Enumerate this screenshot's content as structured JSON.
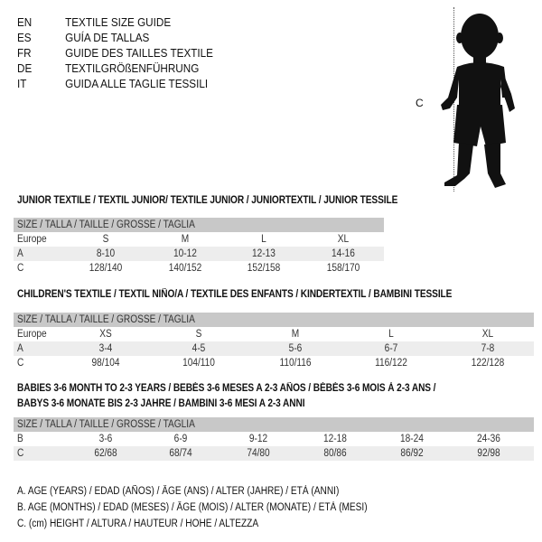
{
  "languages": [
    {
      "code": "EN",
      "title": "TEXTILE SIZE GUIDE"
    },
    {
      "code": "ES",
      "title": "GUÍA DE TALLAS"
    },
    {
      "code": "FR",
      "title": "GUIDE DES TAILLES TEXTILE"
    },
    {
      "code": "DE",
      "title": "TEXTILGRÖßENFÜHRUNG"
    },
    {
      "code": "IT",
      "title": "GUIDA ALLE TAGLIE TESSILI"
    }
  ],
  "figure": {
    "height_label": "C",
    "icon": "child-silhouette-icon"
  },
  "sections": [
    {
      "title": "JUNIOR TEXTILE / TEXTIL JUNIOR/ TEXTILE JUNIOR / JUNIORTEXTIL / JUNIOR TESSILE",
      "header": "SIZE / TALLA / TAILLE / GRÖSSE / TAGLIA",
      "rows": [
        {
          "label": "Europe",
          "cells": [
            "S",
            "M",
            "L",
            "XL"
          ]
        },
        {
          "label": "A",
          "cells": [
            "8-10",
            "10-12",
            "12-13",
            "14-16"
          ]
        },
        {
          "label": "C",
          "cells": [
            "128/140",
            "140/152",
            "152/158",
            "158/170"
          ]
        }
      ]
    },
    {
      "title": "CHILDREN'S TEXTILE / TEXTIL NIÑO/A / TEXTILE DES ENFANTS / KINDERTEXTIL / BAMBINI TESSILE",
      "header": "SIZE / TALLA / TAILLE / GRÖSSE / TAGLIA",
      "rows": [
        {
          "label": "Europe",
          "cells": [
            "XS",
            "S",
            "M",
            "L",
            "XL"
          ]
        },
        {
          "label": "A",
          "cells": [
            "3-4",
            "4-5",
            "5-6",
            "6-7",
            "7-8"
          ]
        },
        {
          "label": "C",
          "cells": [
            "98/104",
            "104/110",
            "110/116",
            "116/122",
            "122/128"
          ]
        }
      ]
    },
    {
      "title": "BABIES 3-6 MONTH TO 2-3 YEARS / BEBÉS 3-6 MESES A 2-3 AÑOS / BÉBÉS 3-6 MOIS À 2-3 ANS /",
      "title2": "BABYS 3-6 MONATE BIS 2-3 JAHRE / BAMBINI 3-6 MESI A 2-3 ANNI",
      "header": "SIZE / TALLA / TAILLE / GRÖSSE / TAGLIA",
      "rows": [
        {
          "label": "B",
          "cells": [
            "3-6",
            "6-9",
            "9-12",
            "12-18",
            "18-24",
            "24-36"
          ]
        },
        {
          "label": "C",
          "cells": [
            "62/68",
            "68/74",
            "74/80",
            "80/86",
            "86/92",
            "92/98"
          ]
        }
      ]
    }
  ],
  "legend": [
    "A. AGE (YEARS) / EDAD (AÑOS) / ÂGE (ANS) / ALTER (JAHRE) / ETÀ (ANNI)",
    "B. AGE (MONTHS) / EDAD (MESES) / ÂGE (MOIS) / ALTER (MONATE) / ETÀ (MESI)",
    "C. (cm) HEIGHT / ALTURA / HAUTEUR / HÖHE / ALTEZZA"
  ]
}
